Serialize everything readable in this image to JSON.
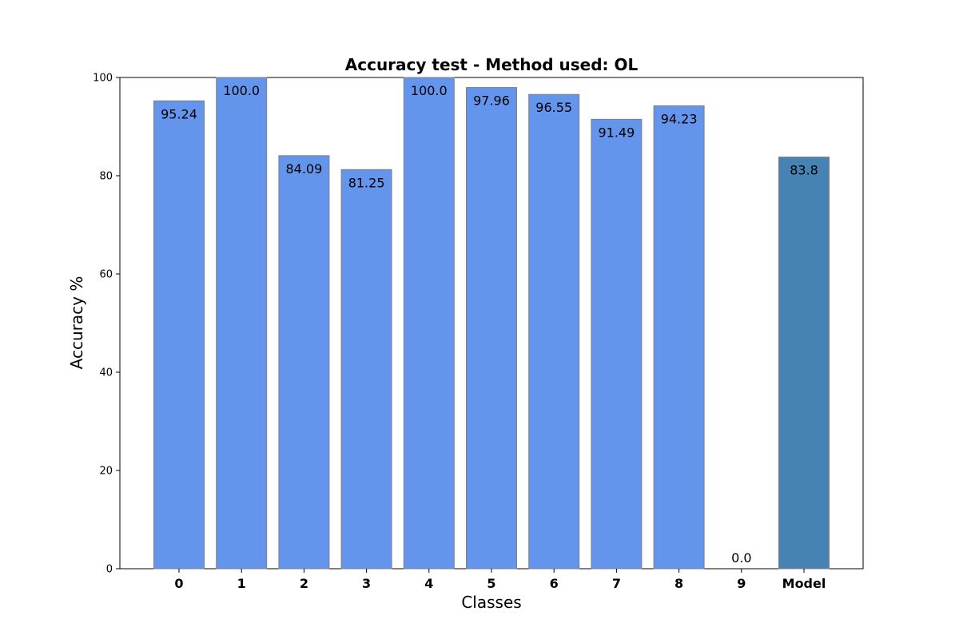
{
  "chart_data": {
    "type": "bar",
    "title": "Accuracy test - Method used: OL",
    "xlabel": "Classes",
    "ylabel": "Accuracy %",
    "ylim": [
      0,
      100
    ],
    "yticks": [
      0,
      20,
      40,
      60,
      80,
      100
    ],
    "categories": [
      "0",
      "1",
      "2",
      "3",
      "4",
      "5",
      "6",
      "7",
      "8",
      "9",
      "Model"
    ],
    "values": [
      95.24,
      100.0,
      84.09,
      81.25,
      100.0,
      97.96,
      96.55,
      91.49,
      94.23,
      0.0,
      83.8
    ],
    "value_labels": [
      "95.24",
      "100.0",
      "84.09",
      "81.25",
      "100.0",
      "97.96",
      "96.55",
      "91.49",
      "94.23",
      "0.0",
      "83.8"
    ],
    "bar_colors": [
      "#6495ED",
      "#6495ED",
      "#6495ED",
      "#6495ED",
      "#6495ED",
      "#6495ED",
      "#6495ED",
      "#6495ED",
      "#6495ED",
      "#6495ED",
      "#4682B4"
    ],
    "bar_edge_color": "#808080",
    "grid": false,
    "legend": null
  }
}
